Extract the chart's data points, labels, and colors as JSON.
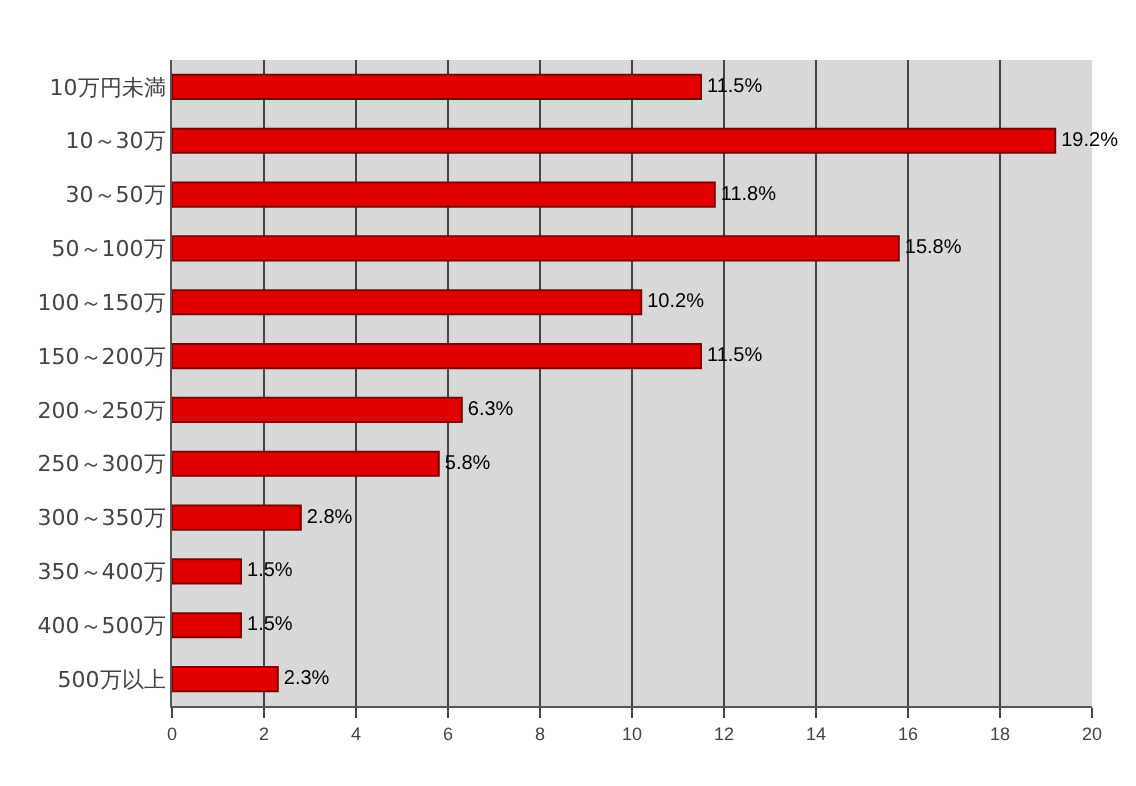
{
  "chart_data": {
    "type": "bar",
    "orientation": "horizontal",
    "categories": [
      "10万円未満",
      "10～30万",
      "30～50万",
      "50～100万",
      "100～150万",
      "150～200万",
      "200～250万",
      "250～300万",
      "300～350万",
      "350～400万",
      "400～500万",
      "500万以上"
    ],
    "values": [
      11.5,
      19.2,
      11.8,
      15.8,
      10.2,
      11.5,
      6.3,
      5.8,
      2.8,
      1.5,
      1.5,
      2.3
    ],
    "value_labels": [
      "11.5%",
      "19.2%",
      "11.8%",
      "15.8%",
      "10.2%",
      "11.5%",
      "6.3%",
      "5.8%",
      "2.8%",
      "1.5%",
      "1.5%",
      "2.3%"
    ],
    "color": "#e00000",
    "xlim": [
      0,
      20
    ],
    "xticks": [
      0,
      2,
      4,
      6,
      8,
      10,
      12,
      14,
      16,
      18,
      20
    ],
    "grid": "x",
    "legend": false
  }
}
